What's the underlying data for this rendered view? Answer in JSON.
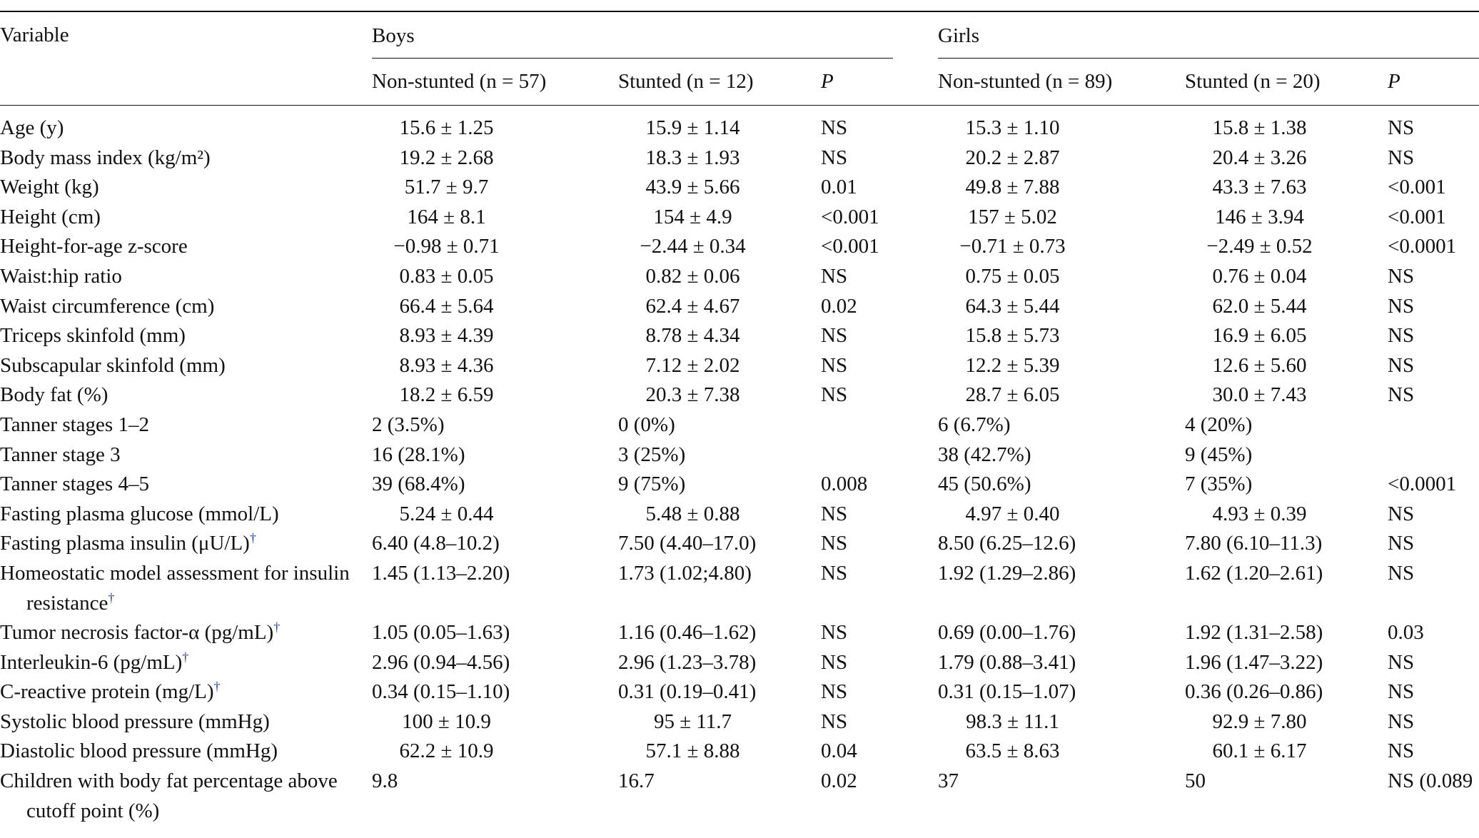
{
  "table": {
    "header": {
      "variable": "Variable",
      "groups": [
        {
          "name": "Boys",
          "columns": [
            "Non-stunted (n = 57)",
            "Stunted (n = 12)",
            "P"
          ]
        },
        {
          "name": "Girls",
          "columns": [
            "Non-stunted (n = 89)",
            "Stunted (n = 20)",
            "P"
          ]
        }
      ]
    },
    "rows": [
      {
        "variable": "Age (y)",
        "cells": [
          "15.6 ± 1.25",
          "15.9 ± 1.14",
          "NS",
          "15.3 ± 1.10",
          "15.8 ± 1.38",
          "NS"
        ]
      },
      {
        "variable": "Body mass index (kg/m²)",
        "cells": [
          "19.2 ± 2.68",
          "18.3 ± 1.93",
          "NS",
          "20.2 ± 2.87",
          "20.4 ± 3.26",
          "NS"
        ]
      },
      {
        "variable": "Weight (kg)",
        "cells": [
          "51.7 ± 9.7",
          "43.9 ± 5.66",
          "0.01",
          "49.8 ± 7.88",
          "43.3 ± 7.63",
          "<0.001"
        ]
      },
      {
        "variable": "Height (cm)",
        "cells": [
          "164 ± 8.1",
          "154 ± 4.9",
          "<0.001",
          "157 ± 5.02",
          "146 ± 3.94",
          "<0.001"
        ]
      },
      {
        "variable": "Height-for-age z-score",
        "cells": [
          "−0.98 ± 0.71",
          "−2.44 ± 0.34",
          "<0.001",
          "−0.71 ± 0.73",
          "−2.49 ± 0.52",
          "<0.0001"
        ]
      },
      {
        "variable": "Waist:hip ratio",
        "cells": [
          "0.83 ± 0.05",
          "0.82 ± 0.06",
          "NS",
          "0.75 ± 0.05",
          "0.76 ± 0.04",
          "NS"
        ]
      },
      {
        "variable": "Waist circumference (cm)",
        "cells": [
          "66.4 ± 5.64",
          "62.4 ± 4.67",
          "0.02",
          "64.3 ± 5.44",
          "62.0 ± 5.44",
          "NS"
        ]
      },
      {
        "variable": "Triceps skinfold (mm)",
        "cells": [
          "8.93 ± 4.39",
          "8.78 ± 4.34",
          "NS",
          "15.8 ± 5.73",
          "16.9 ± 6.05",
          "NS"
        ]
      },
      {
        "variable": "Subscapular skinfold (mm)",
        "cells": [
          "8.93 ± 4.36",
          "7.12 ± 2.02",
          "NS",
          "12.2 ± 5.39",
          "12.6 ± 5.60",
          "NS"
        ]
      },
      {
        "variable": "Body fat (%)",
        "cells": [
          "18.2 ± 6.59",
          "20.3 ± 7.38",
          "NS",
          "28.7 ± 6.05",
          "30.0 ± 7.43",
          "NS"
        ]
      },
      {
        "variable": "Tanner stages 1–2",
        "cells": [
          "2 (3.5%)",
          "0 (0%)",
          null,
          "6 (6.7%)",
          "4 (20%)",
          null
        ]
      },
      {
        "variable": "Tanner stage 3",
        "cells": [
          "16 (28.1%)",
          "3 (25%)",
          null,
          "38 (42.7%)",
          "9 (45%)",
          null
        ]
      },
      {
        "variable": "Tanner stages 4–5",
        "cells": [
          "39 (68.4%)",
          "9 (75%)",
          "0.008",
          "45 (50.6%)",
          "7 (35%)",
          "<0.0001"
        ]
      },
      {
        "variable": "Fasting plasma glucose (mmol/L)",
        "cells": [
          "5.24 ± 0.44",
          "5.48 ± 0.88",
          "NS",
          "4.97 ± 0.40",
          "4.93 ± 0.39",
          "NS"
        ]
      },
      {
        "variable": "Fasting plasma insulin (μU/L)",
        "note": "†",
        "cells": [
          "6.40 (4.8–10.2)",
          "7.50 (4.40–17.0)",
          "NS",
          "8.50 (6.25–12.6)",
          "7.80 (6.10–11.3)",
          "NS"
        ]
      },
      {
        "variable": "Homeostatic model assessment for insulin resistance",
        "note": "†",
        "cells": [
          "1.45 (1.13–2.20)",
          "1.73 (1.02;4.80)",
          "NS",
          "1.92 (1.29–2.86)",
          "1.62 (1.20–2.61)",
          "NS"
        ]
      },
      {
        "variable": "Tumor necrosis factor-α (pg/mL)",
        "note": "†",
        "cells": [
          "1.05 (0.05–1.63)",
          "1.16 (0.46–1.62)",
          "NS",
          "0.69 (0.00–1.76)",
          "1.92 (1.31–2.58)",
          "0.03"
        ]
      },
      {
        "variable": "Interleukin-6 (pg/mL)",
        "note": "†",
        "cells": [
          "2.96 (0.94–4.56)",
          "2.96 (1.23–3.78)",
          "NS",
          "1.79 (0.88–3.41)",
          "1.96 (1.47–3.22)",
          "NS"
        ]
      },
      {
        "variable": "C-reactive protein (mg/L)",
        "note": "†",
        "cells": [
          "0.34 (0.15–1.10)",
          "0.31 (0.19–0.41)",
          "NS",
          "0.31 (0.15–1.07)",
          "0.36 (0.26–0.86)",
          "NS"
        ]
      },
      {
        "variable": "Systolic blood pressure (mmHg)",
        "cells": [
          "100 ± 10.9",
          "95 ± 11.7",
          "NS",
          "98.3 ± 11.1",
          "92.9 ± 7.80",
          "NS"
        ]
      },
      {
        "variable": "Diastolic blood pressure (mmHg)",
        "cells": [
          "62.2 ± 10.9",
          "57.1 ± 8.88",
          "0.04",
          "63.5 ± 8.63",
          "60.1 ± 6.17",
          "NS"
        ]
      },
      {
        "variable": "Children with body fat percentage above cutoff point (%)",
        "cells": [
          "9.8",
          "16.7",
          "0.02",
          "37",
          "50",
          "NS (0.089"
        ]
      }
    ]
  }
}
